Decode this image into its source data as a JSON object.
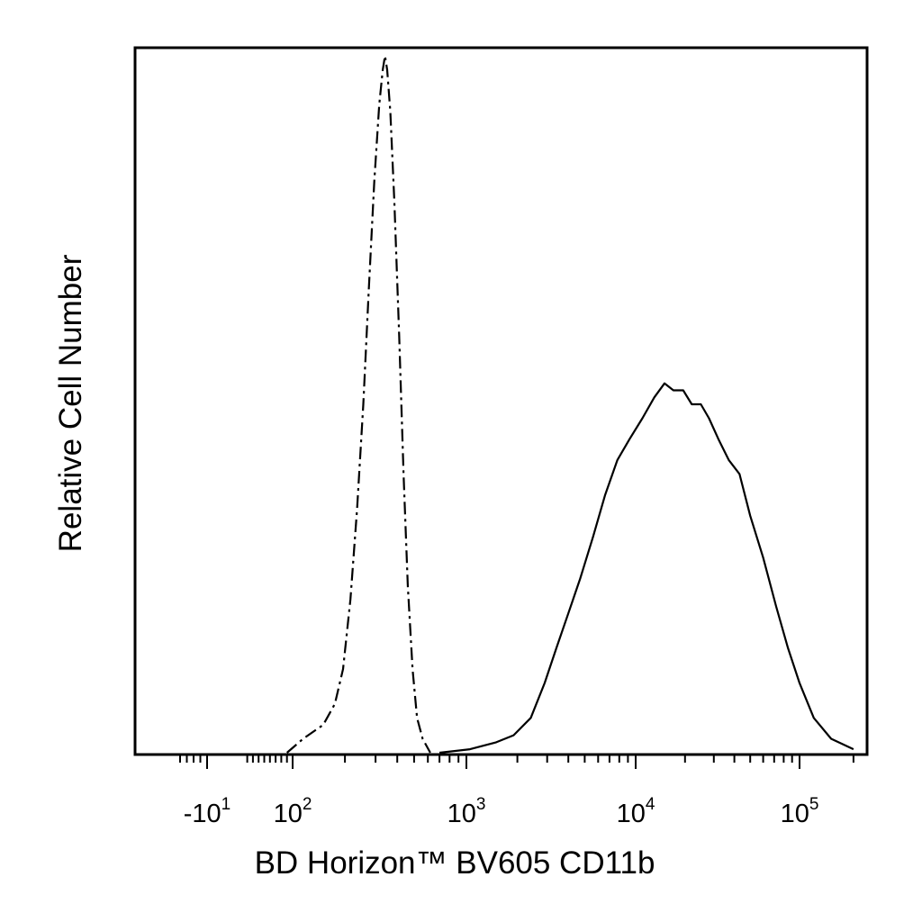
{
  "chart_data": {
    "type": "line",
    "title": "",
    "xlabel": "BD Horizon™ BV605 CD11b",
    "ylabel": "Relative Cell Number",
    "x_scale": "biexponential",
    "xlim": [
      -50,
      230000
    ],
    "ylim": [
      0,
      100
    ],
    "grid": false,
    "legend": "none",
    "x_tick_labels": [
      {
        "value": -10,
        "base": "-10",
        "exp": "1"
      },
      {
        "value": 100,
        "base": "10",
        "exp": "2"
      },
      {
        "value": 1000,
        "base": "10",
        "exp": "3"
      },
      {
        "value": 10000,
        "base": "10",
        "exp": "4"
      },
      {
        "value": 100000,
        "base": "10",
        "exp": "5"
      }
    ],
    "series": [
      {
        "style": "dash-dot",
        "color": "#000000",
        "points": [
          [
            90,
            0
          ],
          [
            115,
            2
          ],
          [
            150,
            4
          ],
          [
            175,
            7
          ],
          [
            195,
            12
          ],
          [
            215,
            22
          ],
          [
            235,
            35
          ],
          [
            255,
            50
          ],
          [
            275,
            67
          ],
          [
            295,
            82
          ],
          [
            315,
            93
          ],
          [
            330,
            98
          ],
          [
            340,
            100
          ],
          [
            350,
            98
          ],
          [
            365,
            92
          ],
          [
            385,
            79
          ],
          [
            410,
            60
          ],
          [
            435,
            40
          ],
          [
            460,
            24
          ],
          [
            490,
            12
          ],
          [
            520,
            5
          ],
          [
            560,
            2
          ],
          [
            620,
            0
          ]
        ]
      },
      {
        "style": "solid",
        "color": "#000000",
        "points": [
          [
            700,
            0
          ],
          [
            1050,
            0.5
          ],
          [
            1500,
            1.5
          ],
          [
            1900,
            2.5
          ],
          [
            2400,
            5
          ],
          [
            2900,
            10
          ],
          [
            3400,
            15
          ],
          [
            4000,
            20
          ],
          [
            4700,
            25
          ],
          [
            5600,
            31
          ],
          [
            6600,
            37
          ],
          [
            7800,
            42
          ],
          [
            9200,
            45
          ],
          [
            11000,
            48
          ],
          [
            13000,
            51
          ],
          [
            15000,
            53
          ],
          [
            17000,
            52
          ],
          [
            19500,
            52
          ],
          [
            22000,
            50
          ],
          [
            25000,
            50
          ],
          [
            28000,
            48
          ],
          [
            32000,
            45
          ],
          [
            37000,
            42
          ],
          [
            43000,
            40
          ],
          [
            50000,
            34
          ],
          [
            60000,
            28
          ],
          [
            72000,
            21
          ],
          [
            85000,
            15
          ],
          [
            100000,
            10
          ],
          [
            120000,
            5
          ],
          [
            150000,
            2
          ],
          [
            200000,
            0.5
          ]
        ]
      }
    ]
  }
}
